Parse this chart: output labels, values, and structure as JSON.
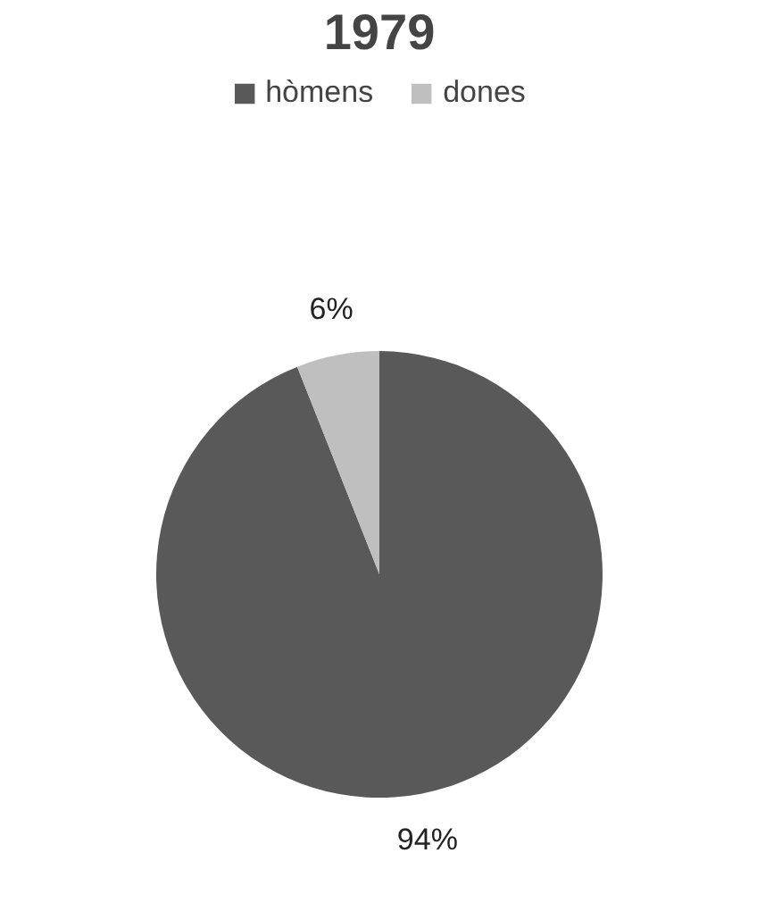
{
  "chart_data": {
    "type": "pie",
    "title": "1979",
    "categories": [
      "hòmens",
      "dones"
    ],
    "values": [
      94,
      6
    ],
    "colors": [
      "#595959",
      "#bfbfbf"
    ],
    "value_labels": [
      "94%",
      "6%"
    ],
    "legend": "top"
  }
}
